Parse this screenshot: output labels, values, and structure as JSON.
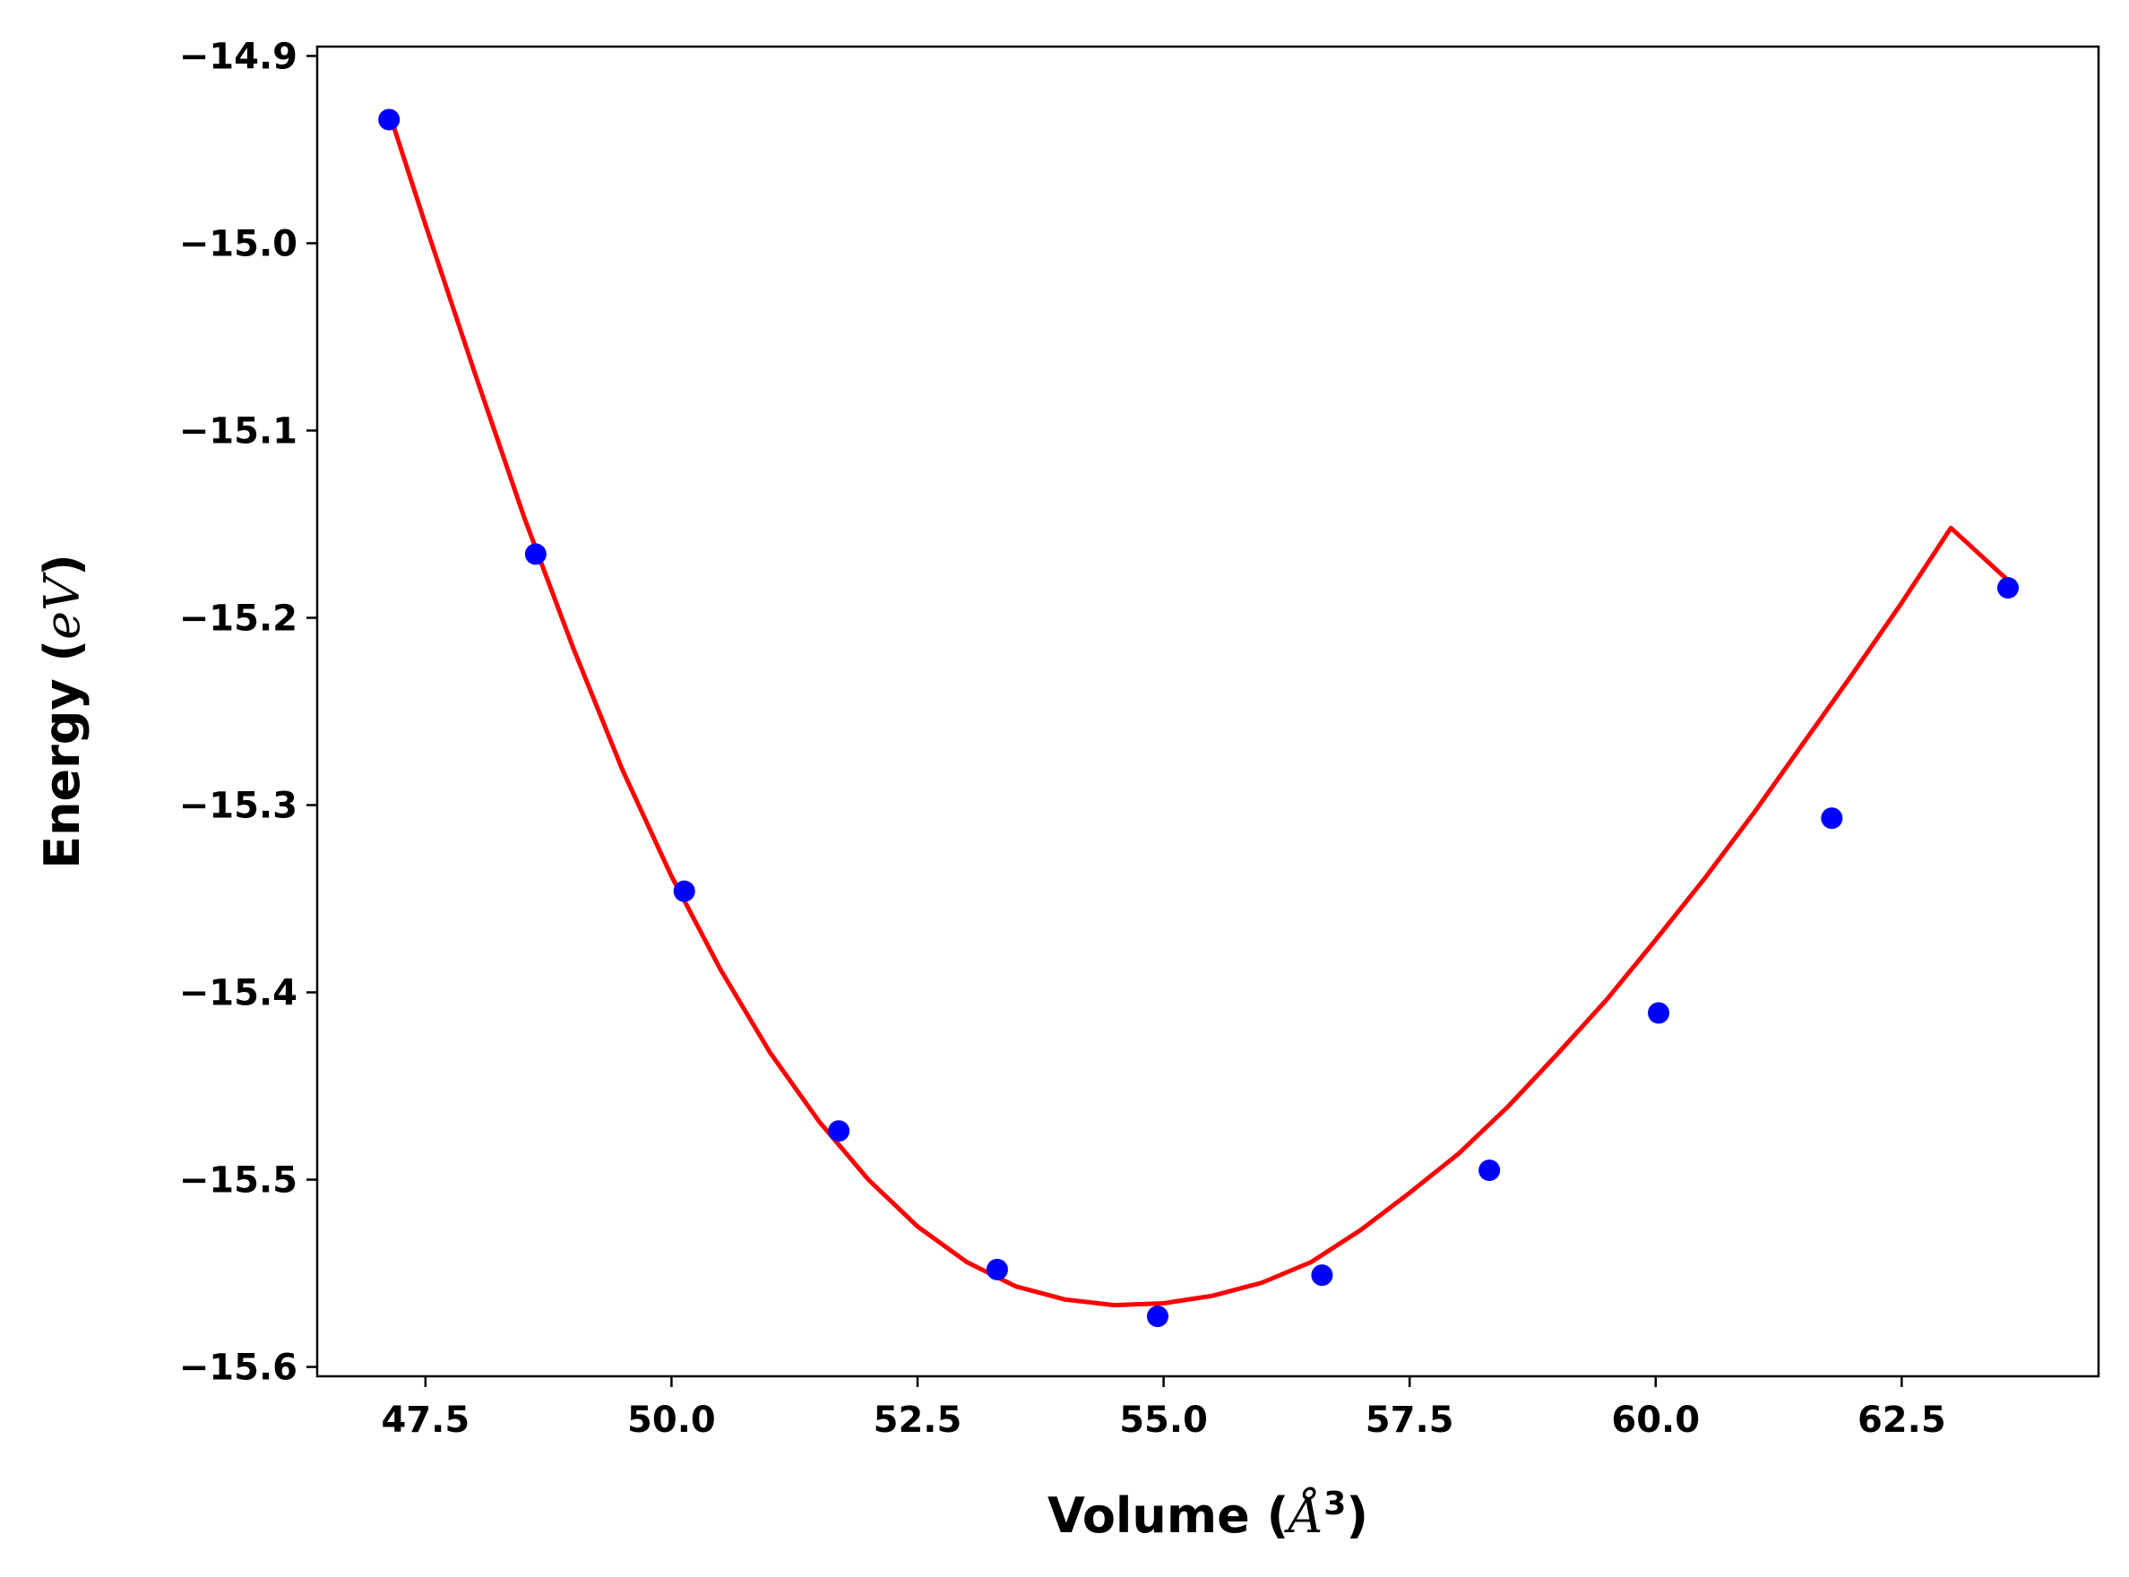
{
  "chart_data": {
    "type": "scatter",
    "title": "",
    "xlabel": "Volume",
    "xlabel_unit": "Å",
    "xlabel_unit_exp": "3",
    "ylabel": "Energy",
    "ylabel_unit": "eV",
    "xlim": [
      46.4,
      64.5
    ],
    "ylim": [
      -15.605,
      -14.895
    ],
    "xticks": [
      47.5,
      50.0,
      52.5,
      55.0,
      57.5,
      60.0,
      62.5
    ],
    "xtick_labels": [
      "47.5",
      "50.0",
      "52.5",
      "55.0",
      "57.5",
      "60.0",
      "62.5"
    ],
    "yticks": [
      -14.9,
      -15.0,
      -15.1,
      -15.2,
      -15.3,
      -15.4,
      -15.5,
      -15.6
    ],
    "ytick_labels": [
      "−14.9",
      "−15.0",
      "−15.1",
      "−15.2",
      "−15.3",
      "−15.4",
      "−15.5",
      "−15.6"
    ],
    "grid": false,
    "legend": "none",
    "series": [
      {
        "kind": "points",
        "color": "#0000ff",
        "x": [
          47.13,
          48.62,
          50.13,
          51.7,
          53.31,
          54.94,
          56.61,
          58.31,
          60.03,
          61.79,
          63.58
        ],
        "y": [
          -14.934,
          -15.166,
          -15.346,
          -15.474,
          -15.548,
          -15.573,
          -15.551,
          -15.495,
          -15.411,
          -15.307,
          -15.184
        ]
      },
      {
        "kind": "fit_line",
        "color": "#ff0000",
        "x": [
          47.13,
          47.5,
          48.0,
          48.5,
          49.0,
          49.5,
          50.0,
          50.5,
          51.0,
          51.5,
          52.0,
          52.5,
          53.0,
          53.5,
          54.0,
          54.5,
          55.0,
          55.5,
          56.0,
          56.5,
          57.0,
          57.5,
          58.0,
          58.5,
          59.0,
          59.5,
          60.0,
          60.5,
          61.0,
          61.5,
          62.0,
          62.5,
          63.0,
          63.58
        ],
        "y": [
          -14.93,
          -14.99,
          -15.069,
          -15.146,
          -15.216,
          -15.281,
          -15.338,
          -15.388,
          -15.432,
          -15.469,
          -15.5,
          -15.525,
          -15.544,
          -15.557,
          -15.564,
          -15.567,
          -15.566,
          -15.562,
          -15.555,
          -15.544,
          -15.527,
          -15.507,
          -15.486,
          -15.461,
          -15.433,
          -15.404,
          -15.372,
          -15.339,
          -15.304,
          -15.267,
          -15.23,
          -15.192,
          -15.152,
          -15.18
        ]
      }
    ]
  }
}
